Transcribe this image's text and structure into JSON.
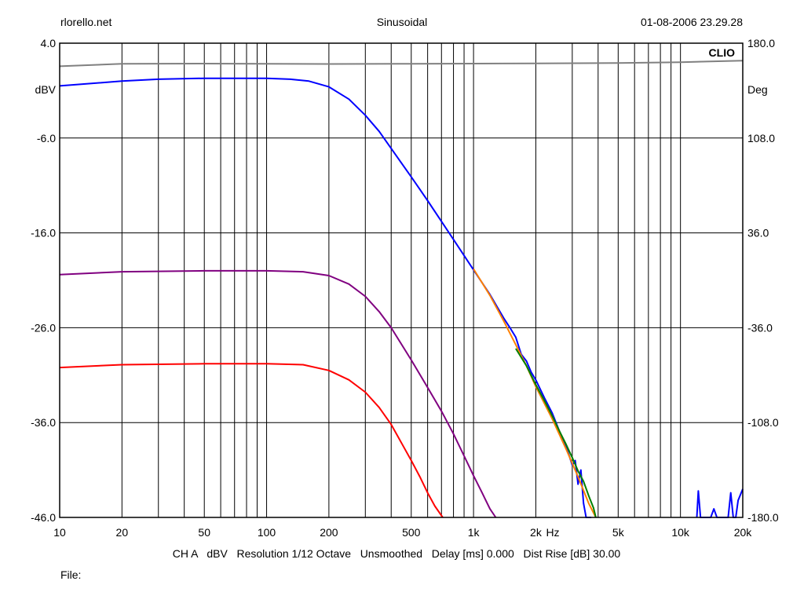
{
  "header": {
    "left": "rlorello.net",
    "center": "Sinusoidal",
    "right": "01-08-2006 23.29.28"
  },
  "brand": "CLIO",
  "footer": {
    "settings": "CH A   dBV   Resolution 1/12 Octave   Unsmoothed   Delay [ms] 0.000   Dist Rise [dB] 30.00",
    "file_label": "File:"
  },
  "colors": {
    "grid": "#000000",
    "phase": "#808080",
    "blue": "#0000ff",
    "purple": "#800080",
    "red": "#ff0000",
    "orange": "#ff8000",
    "green": "#008000"
  },
  "chart_data": {
    "type": "line",
    "x_scale": "log",
    "xlim": [
      10,
      20000
    ],
    "ylim": [
      -46.0,
      4.0
    ],
    "y2lim": [
      -180.0,
      180.0
    ],
    "ylabel": "dBV",
    "y2label": "Deg",
    "xunit": "Hz",
    "grid": true,
    "x_ticks": [
      {
        "v": 10,
        "label": "10"
      },
      {
        "v": 20,
        "label": "20"
      },
      {
        "v": 50,
        "label": "50"
      },
      {
        "v": 100,
        "label": "100"
      },
      {
        "v": 200,
        "label": "200"
      },
      {
        "v": 500,
        "label": "500"
      },
      {
        "v": 1000,
        "label": "1k"
      },
      {
        "v": 2000,
        "label": "2k"
      },
      {
        "v": 5000,
        "label": "5k"
      },
      {
        "v": 10000,
        "label": "10k"
      },
      {
        "v": 20000,
        "label": "20k"
      }
    ],
    "y_ticks": [
      {
        "v": 4.0,
        "label": "4.0"
      },
      {
        "v": -6.0,
        "label": "-6.0"
      },
      {
        "v": -16.0,
        "label": "-16.0"
      },
      {
        "v": -26.0,
        "label": "-26.0"
      },
      {
        "v": -36.0,
        "label": "-36.0"
      },
      {
        "v": -46.0,
        "label": "-46.0"
      }
    ],
    "y2_ticks": [
      {
        "v": 180.0,
        "label": "180.0"
      },
      {
        "v": 108.0,
        "label": "108.0"
      },
      {
        "v": 36.0,
        "label": "36.0"
      },
      {
        "v": -36.0,
        "label": "-36.0"
      },
      {
        "v": -108.0,
        "label": "-108.0"
      },
      {
        "v": -180.0,
        "label": "-180.0"
      }
    ],
    "series": [
      {
        "color": "#808080",
        "axis": "y2",
        "x": [
          10,
          20,
          50,
          100,
          200,
          500,
          1000,
          2000,
          5000,
          10000,
          20000
        ],
        "y": [
          162.5,
          164.3,
          164.5,
          164.3,
          164.2,
          164.4,
          164.5,
          164.7,
          165.0,
          165.6,
          166.7
        ]
      },
      {
        "color": "#0000ff",
        "axis": "y",
        "x": [
          10,
          20,
          30,
          50,
          80,
          100,
          130,
          160,
          200,
          250,
          300,
          350,
          400,
          500,
          600,
          700,
          800,
          1000,
          1200,
          1400,
          1500,
          1600,
          1700,
          1800,
          1900,
          2000,
          2200,
          2400,
          2600,
          2800,
          3000,
          3100,
          3200,
          3300,
          3400,
          3500,
          3700
        ],
        "y": [
          -0.5,
          0.0,
          0.2,
          0.3,
          0.3,
          0.3,
          0.2,
          0.0,
          -0.6,
          -1.9,
          -3.6,
          -5.3,
          -7.1,
          -10.1,
          -12.6,
          -14.8,
          -16.7,
          -19.9,
          -22.5,
          -25.0,
          -26.0,
          -27.0,
          -28.8,
          -29.5,
          -30.7,
          -31.5,
          -33.4,
          -35.0,
          -36.9,
          -38.5,
          -40.5,
          -40.0,
          -42.5,
          -41.0,
          -44.5,
          -46.0,
          -46.0
        ]
      },
      {
        "color": "#800080",
        "axis": "y",
        "x": [
          10,
          20,
          50,
          100,
          150,
          200,
          250,
          300,
          350,
          400,
          500,
          600,
          700,
          800,
          900,
          1000,
          1100,
          1200,
          1280
        ],
        "y": [
          -20.4,
          -20.1,
          -20.0,
          -20.0,
          -20.1,
          -20.5,
          -21.4,
          -22.7,
          -24.3,
          -26.0,
          -29.4,
          -32.3,
          -34.8,
          -37.2,
          -39.5,
          -41.6,
          -43.4,
          -45.1,
          -46.0
        ]
      },
      {
        "color": "#ff0000",
        "axis": "y",
        "x": [
          10,
          20,
          50,
          100,
          150,
          200,
          250,
          300,
          350,
          400,
          450,
          500,
          550,
          600,
          650,
          710
        ],
        "y": [
          -30.2,
          -29.9,
          -29.8,
          -29.8,
          -29.9,
          -30.5,
          -31.5,
          -32.8,
          -34.4,
          -36.2,
          -38.2,
          -40.0,
          -41.7,
          -43.4,
          -44.8,
          -46.0
        ]
      },
      {
        "color": "#ff8000",
        "axis": "y",
        "x": [
          1000,
          1200,
          1400,
          1600,
          1800,
          2000,
          2400,
          2800,
          3200,
          3600,
          3900
        ],
        "y": [
          -19.8,
          -22.6,
          -25.3,
          -27.8,
          -30.0,
          -32.2,
          -35.6,
          -38.8,
          -41.7,
          -44.5,
          -46.0
        ]
      },
      {
        "color": "#008000",
        "axis": "y",
        "x": [
          1600,
          1800,
          2000,
          2200,
          2400,
          2600,
          2800,
          3000,
          3200,
          3400,
          3600,
          3800,
          3900
        ],
        "y": [
          -28.2,
          -30.0,
          -32.0,
          -33.7,
          -35.3,
          -36.9,
          -38.3,
          -39.7,
          -41.1,
          -42.2,
          -43.7,
          -45.0,
          -46.0
        ]
      },
      {
        "color": "#0000ff",
        "axis": "y",
        "x": [
          12000,
          12200,
          12500,
          12800,
          14000,
          14500,
          15000,
          17000,
          17500,
          18000,
          18500,
          19000,
          20000
        ],
        "y": [
          -46.0,
          -43.2,
          -46.0,
          -46.0,
          -46.0,
          -45.1,
          -46.0,
          -46.0,
          -43.4,
          -46.0,
          -46.0,
          -44.2,
          -43.0
        ]
      }
    ]
  }
}
